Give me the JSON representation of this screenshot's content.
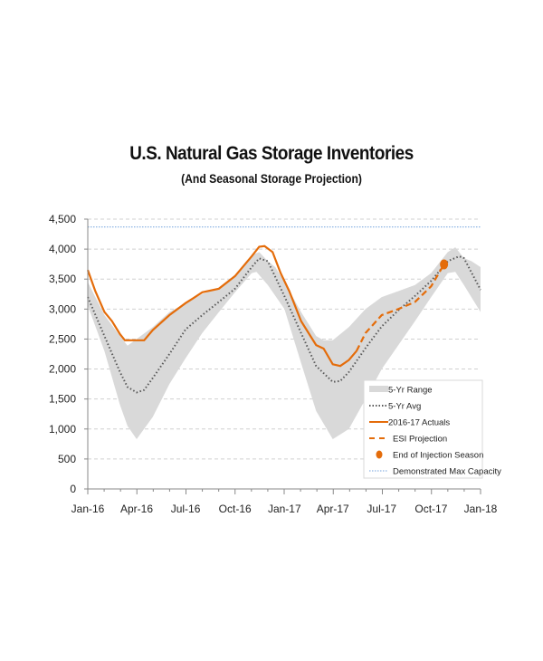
{
  "chart_data": {
    "type": "line",
    "title": "U.S. Natural Gas Storage Inventories",
    "subtitle": "(And Seasonal Storage Projection)",
    "xlabel": "",
    "ylabel": "",
    "ylim": [
      0,
      4500
    ],
    "xlim": [
      "2016-01-01",
      "2018-01-01"
    ],
    "y_ticks": [
      "0",
      "500",
      "1,000",
      "1,500",
      "2,000",
      "2,500",
      "3,000",
      "3,500",
      "4,000",
      "4,500"
    ],
    "y_tick_values": [
      0,
      500,
      1000,
      1500,
      2000,
      2500,
      3000,
      3500,
      4000,
      4500
    ],
    "x_ticks": [
      "Jan-16",
      "Apr-16",
      "Jul-16",
      "Oct-16",
      "Jan-17",
      "Apr-17",
      "Jul-17",
      "Oct-17",
      "Jan-18"
    ],
    "x_tick_dates": [
      "2016-01-01",
      "2016-04-01",
      "2016-07-01",
      "2016-10-01",
      "2017-01-01",
      "2017-04-01",
      "2017-07-01",
      "2017-10-01",
      "2018-01-01"
    ],
    "grid": "horizontal dashed",
    "legend_placement": "bottom-right",
    "colors": {
      "range": "#d9d9d9",
      "avg": "#595959",
      "actual": "#e46c0a",
      "projection": "#e46c0a",
      "end": "#e46c0a",
      "capacity": "#8eb4e3"
    },
    "series": [
      {
        "name": "5-Yr Range",
        "kind": "band",
        "upper": [
          [
            "2016-01-01",
            3450
          ],
          [
            "2016-02-01",
            2900
          ],
          [
            "2016-03-01",
            2550
          ],
          [
            "2016-03-15",
            2390
          ],
          [
            "2016-04-01",
            2500
          ],
          [
            "2016-05-01",
            2700
          ],
          [
            "2016-06-01",
            2950
          ],
          [
            "2016-07-01",
            3100
          ],
          [
            "2016-08-01",
            3250
          ],
          [
            "2016-09-01",
            3350
          ],
          [
            "2016-10-01",
            3550
          ],
          [
            "2016-11-01",
            3900
          ],
          [
            "2016-11-15",
            3950
          ],
          [
            "2016-12-01",
            3800
          ],
          [
            "2016-12-15",
            3700
          ],
          [
            "2017-01-01",
            3450
          ],
          [
            "2017-02-01",
            2950
          ],
          [
            "2017-03-01",
            2550
          ],
          [
            "2017-03-15",
            2480
          ],
          [
            "2017-04-01",
            2480
          ],
          [
            "2017-05-01",
            2700
          ],
          [
            "2017-06-01",
            3000
          ],
          [
            "2017-07-01",
            3200
          ],
          [
            "2017-08-01",
            3300
          ],
          [
            "2017-09-01",
            3400
          ],
          [
            "2017-10-01",
            3600
          ],
          [
            "2017-11-01",
            3950
          ],
          [
            "2017-11-15",
            4030
          ],
          [
            "2017-12-01",
            3850
          ],
          [
            "2017-12-15",
            3800
          ],
          [
            "2018-01-01",
            3700
          ]
        ],
        "lower": [
          [
            "2016-01-01",
            3060
          ],
          [
            "2016-02-01",
            2300
          ],
          [
            "2016-03-01",
            1400
          ],
          [
            "2016-03-15",
            1050
          ],
          [
            "2016-04-01",
            830
          ],
          [
            "2016-05-01",
            1200
          ],
          [
            "2016-06-01",
            1750
          ],
          [
            "2016-07-01",
            2180
          ],
          [
            "2016-08-01",
            2600
          ],
          [
            "2016-09-01",
            2950
          ],
          [
            "2016-10-01",
            3280
          ],
          [
            "2016-11-01",
            3600
          ],
          [
            "2016-11-10",
            3620
          ],
          [
            "2016-12-01",
            3400
          ],
          [
            "2017-01-01",
            3000
          ],
          [
            "2017-02-01",
            2100
          ],
          [
            "2017-03-01",
            1300
          ],
          [
            "2017-04-01",
            830
          ],
          [
            "2017-05-01",
            1000
          ],
          [
            "2017-06-01",
            1500
          ],
          [
            "2017-07-01",
            2000
          ],
          [
            "2017-08-01",
            2400
          ],
          [
            "2017-09-01",
            2800
          ],
          [
            "2017-10-01",
            3200
          ],
          [
            "2017-11-01",
            3600
          ],
          [
            "2017-11-15",
            3620
          ],
          [
            "2017-12-01",
            3400
          ],
          [
            "2018-01-01",
            2950
          ]
        ]
      },
      {
        "name": "5-Yr Avg",
        "kind": "dotted",
        "points": [
          [
            "2016-01-01",
            3200
          ],
          [
            "2016-02-01",
            2550
          ],
          [
            "2016-03-01",
            1950
          ],
          [
            "2016-03-15",
            1700
          ],
          [
            "2016-04-01",
            1610
          ],
          [
            "2016-04-15",
            1650
          ],
          [
            "2016-05-01",
            1850
          ],
          [
            "2016-06-01",
            2250
          ],
          [
            "2016-07-01",
            2660
          ],
          [
            "2016-08-01",
            2900
          ],
          [
            "2016-09-01",
            3120
          ],
          [
            "2016-10-01",
            3340
          ],
          [
            "2016-11-01",
            3700
          ],
          [
            "2016-11-15",
            3845
          ],
          [
            "2016-12-01",
            3800
          ],
          [
            "2017-01-01",
            3215
          ],
          [
            "2017-02-01",
            2600
          ],
          [
            "2017-03-01",
            2050
          ],
          [
            "2017-04-01",
            1785
          ],
          [
            "2017-04-15",
            1800
          ],
          [
            "2017-05-01",
            1950
          ],
          [
            "2017-06-01",
            2350
          ],
          [
            "2017-07-01",
            2710
          ],
          [
            "2017-08-01",
            2980
          ],
          [
            "2017-09-01",
            3220
          ],
          [
            "2017-10-01",
            3470
          ],
          [
            "2017-11-01",
            3800
          ],
          [
            "2017-11-22",
            3880
          ],
          [
            "2017-12-01",
            3850
          ],
          [
            "2018-01-01",
            3320
          ]
        ]
      },
      {
        "name": "2016-17 Actuals",
        "kind": "solid",
        "points": [
          [
            "2016-01-01",
            3650
          ],
          [
            "2016-01-15",
            3300
          ],
          [
            "2016-02-01",
            2950
          ],
          [
            "2016-02-15",
            2800
          ],
          [
            "2016-03-01",
            2580
          ],
          [
            "2016-03-10",
            2480
          ],
          [
            "2016-04-01",
            2480
          ],
          [
            "2016-04-15",
            2480
          ],
          [
            "2016-05-01",
            2650
          ],
          [
            "2016-06-01",
            2900
          ],
          [
            "2016-07-01",
            3100
          ],
          [
            "2016-07-15",
            3180
          ],
          [
            "2016-08-01",
            3280
          ],
          [
            "2016-09-01",
            3340
          ],
          [
            "2016-10-01",
            3550
          ],
          [
            "2016-11-01",
            3880
          ],
          [
            "2016-11-15",
            4040
          ],
          [
            "2016-11-25",
            4050
          ],
          [
            "2016-12-10",
            3950
          ],
          [
            "2016-12-25",
            3600
          ],
          [
            "2017-01-10",
            3300
          ],
          [
            "2017-02-01",
            2800
          ],
          [
            "2017-03-01",
            2400
          ],
          [
            "2017-03-15",
            2340
          ],
          [
            "2017-04-01",
            2080
          ],
          [
            "2017-04-15",
            2050
          ],
          [
            "2017-05-01",
            2150
          ],
          [
            "2017-05-15",
            2300
          ]
        ]
      },
      {
        "name": "ESI Projection",
        "kind": "dashed",
        "points": [
          [
            "2017-05-15",
            2300
          ],
          [
            "2017-06-01",
            2600
          ],
          [
            "2017-07-01",
            2900
          ],
          [
            "2017-08-01",
            3000
          ],
          [
            "2017-09-01",
            3120
          ],
          [
            "2017-10-01",
            3380
          ],
          [
            "2017-10-25",
            3745
          ]
        ]
      },
      {
        "name": "End of Injection Season",
        "kind": "marker",
        "points": [
          [
            "2017-10-25",
            3745
          ]
        ]
      },
      {
        "name": "Demonstrated Max Capacity",
        "kind": "hline",
        "value": 4370
      }
    ]
  }
}
